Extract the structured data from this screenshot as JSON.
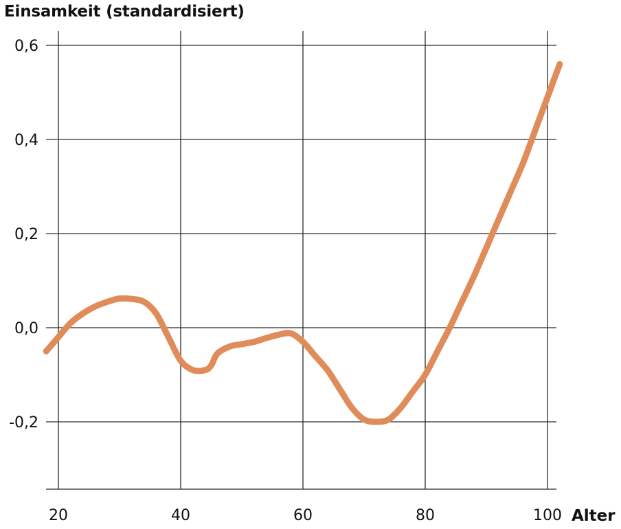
{
  "chart_data": {
    "type": "line",
    "title": "",
    "ylabel": "Einsamkeit (standardisiert)",
    "xlabel": "Alter",
    "xlim": [
      18,
      104
    ],
    "ylim": [
      -0.34,
      0.6
    ],
    "x_ticks": [
      20,
      40,
      60,
      80,
      100
    ],
    "x_tick_labels": [
      "20",
      "40",
      "60",
      "80",
      "100"
    ],
    "y_ticks": [
      0.6,
      0.4,
      0.2,
      0.0,
      -0.2
    ],
    "y_tick_labels": [
      "0,6",
      "0,4",
      "0,2",
      "0,0",
      "-0,2"
    ],
    "grid": true,
    "line_color": "#e08c5a",
    "series": [
      {
        "x": [
          18,
          20,
          22,
          24,
          26,
          28,
          30,
          32,
          34,
          36,
          38,
          40,
          42,
          44,
          45,
          46,
          48,
          50,
          52,
          54,
          56,
          58,
          60,
          62,
          64,
          66,
          68,
          70,
          72,
          74,
          76,
          78,
          80,
          82,
          84,
          86,
          88,
          90,
          92,
          94,
          96,
          98,
          100,
          102
        ],
        "y": [
          -0.05,
          -0.02,
          0.01,
          0.03,
          0.045,
          0.055,
          0.062,
          0.061,
          0.055,
          0.03,
          -0.02,
          -0.07,
          -0.09,
          -0.09,
          -0.08,
          -0.055,
          -0.04,
          -0.035,
          -0.03,
          -0.022,
          -0.015,
          -0.012,
          -0.03,
          -0.06,
          -0.09,
          -0.13,
          -0.17,
          -0.195,
          -0.2,
          -0.195,
          -0.17,
          -0.135,
          -0.1,
          -0.05,
          0.0,
          0.055,
          0.11,
          0.17,
          0.23,
          0.29,
          0.35,
          0.42,
          0.49,
          0.56
        ]
      }
    ]
  }
}
